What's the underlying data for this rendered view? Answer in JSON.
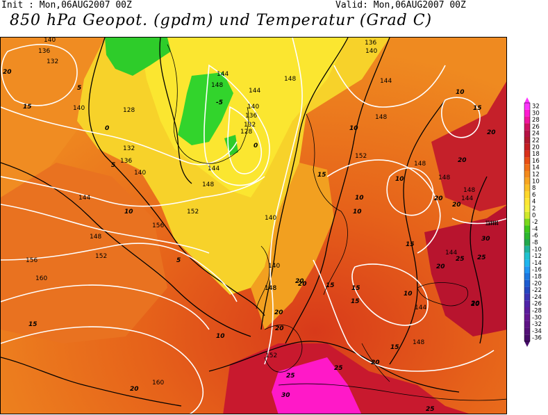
{
  "header": {
    "init": "Init : Mon,06AUG2007 00Z",
    "valid": "Valid: Mon,06AUG2007 00Z",
    "title": "850 hPa Geopot. (gpdm) und Temperatur (Grad C)"
  },
  "geopotential_labels": [
    "140",
    "136",
    "132",
    "128",
    "140",
    "132",
    "136",
    "140",
    "144",
    "148",
    "152",
    "156",
    "156",
    "160",
    "160",
    "152",
    "148",
    "144",
    "148",
    "144",
    "140",
    "136",
    "132",
    "128",
    "148",
    "144",
    "140",
    "148",
    "140",
    "152",
    "148",
    "148",
    "148",
    "144",
    "144",
    "144",
    "140",
    "136",
    "148",
    "152",
    "148",
    "144",
    "148",
    "144",
    "144"
  ],
  "temperature_labels": [
    "20",
    "15",
    "10",
    "5",
    "5",
    "0",
    "-5",
    "0",
    "5",
    "10",
    "15",
    "20",
    "20",
    "20",
    "15",
    "15",
    "10",
    "25",
    "20",
    "25",
    "30",
    "25",
    "15",
    "20",
    "20",
    "20",
    "25",
    "30",
    "10",
    "10",
    "10",
    "15",
    "10",
    "15",
    "20",
    "20",
    "20",
    "20",
    "25",
    "15",
    "20",
    "10",
    "15",
    "20"
  ],
  "legend": {
    "values": [
      "32",
      "30",
      "28",
      "26",
      "24",
      "22",
      "20",
      "18",
      "16",
      "14",
      "12",
      "10",
      "8",
      "6",
      "4",
      "2",
      "0",
      "-2",
      "-4",
      "-6",
      "-8",
      "-10",
      "-12",
      "-14",
      "-16",
      "-18",
      "-20",
      "-22",
      "-24",
      "-26",
      "-28",
      "-30",
      "-32",
      "-34",
      "-36"
    ],
    "colors": [
      "#ff33ff",
      "#ff1ad1",
      "#f0149e",
      "#d01062",
      "#b51244",
      "#b0192e",
      "#c41e22",
      "#d8301a",
      "#e84f14",
      "#f07018",
      "#f38a1c",
      "#f8a520",
      "#fbc026",
      "#fdd72a",
      "#fde633",
      "#f4f03a",
      "#cfe82a",
      "#7ad81c",
      "#3fc71a",
      "#2cb72e",
      "#22a84c",
      "#1fb29a",
      "#20c2d0",
      "#1fb5ee",
      "#2196f3",
      "#1c78e0",
      "#1d5cd0",
      "#2546c0",
      "#3a33b5",
      "#4f24a8",
      "#5c1c9c",
      "#651792",
      "#5e1385",
      "#531077",
      "#460c69"
    ]
  },
  "colors": {
    "frame": "#000000",
    "geopotential_contour": "#ffffff",
    "temperature_contour": "#000000"
  }
}
